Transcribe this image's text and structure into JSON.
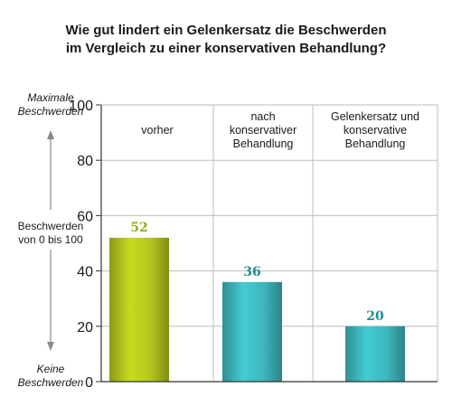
{
  "title_lines": [
    "Wie gut lindert ein Gelenkersatz die Beschwerden",
    "im Vergleich zu einer konservativen Behandlung?"
  ],
  "side": {
    "top_label": [
      "Maximale",
      "Beschwerden"
    ],
    "middle_label": [
      "Beschwerden",
      "von 0 bis 100"
    ],
    "bottom_label": [
      "Keine",
      "Beschwerden"
    ]
  },
  "colors": {
    "vorher": "#b3c41c",
    "teal": "#3db6bc",
    "vorher_label": "#9aab14",
    "teal_label": "#1f8e92",
    "grid": "#bdbdbd",
    "axis": "#333333",
    "arrow": "#8a8a8a"
  },
  "chart_data": {
    "type": "bar",
    "categories": [
      [
        "vorher"
      ],
      [
        "nach",
        "konservativer",
        "Behandlung"
      ],
      [
        "Gelenkersatz und",
        "konservative",
        "Behandlung"
      ]
    ],
    "values": [
      52,
      36,
      20
    ],
    "ylim": [
      0,
      100
    ],
    "yticks": [
      0,
      20,
      40,
      60,
      80,
      100
    ],
    "grid": true
  }
}
